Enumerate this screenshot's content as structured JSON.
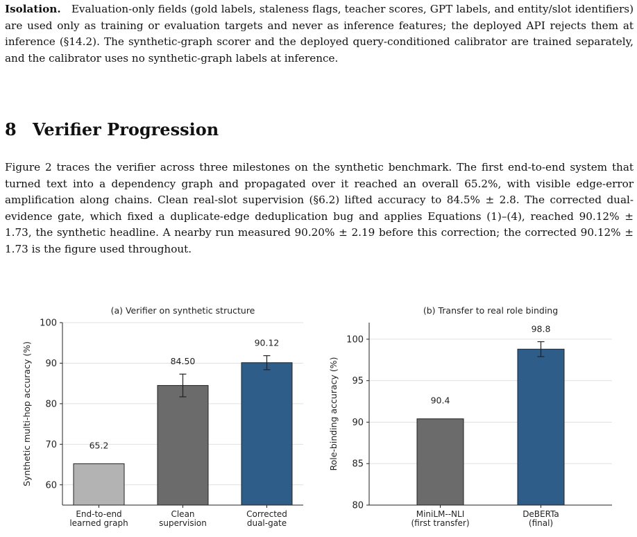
{
  "paragraph1": {
    "lead": "Isolation.",
    "text": "Evaluation-only fields (gold labels, staleness flags, teacher scores, GPT labels, and entity/slot identifiers) are used only as training or evaluation targets and never as inference features; the deployed API rejects them at inference (§14.2). The synthetic-graph scorer and the deployed query-conditioned calibrator are trained separately, and the calibrator uses no synthetic-graph labels at inference."
  },
  "section": {
    "number": "8",
    "title": "Verifier Progression"
  },
  "paragraph2": {
    "text": "Figure 2 traces the verifier across three milestones on the synthetic benchmark. The first end-to-end system that turned text into a dependency graph and propagated over it reached an overall 65.2%, with visible edge-error amplification along chains. Clean real-slot supervision (§6.2) lifted accuracy to 84.5% ± 2.8. The corrected dual-evidence gate, which fixed a duplicate-edge deduplication bug and applies Equations (1)–(4), reached 90.12% ± 1.73, the synthetic headline. A nearby run measured 90.20% ± 2.19 before this correction; the corrected 90.12% ± 1.73 is the figure used throughout."
  },
  "chart_data": [
    {
      "type": "bar",
      "title": "(a) Verifier on synthetic structure",
      "xlabel": "",
      "ylabel": "Synthetic multi-hop accuracy (%)",
      "categories": [
        [
          "End-to-end",
          "learned graph"
        ],
        [
          "Clean",
          "supervision"
        ],
        [
          "Corrected",
          "dual-gate"
        ]
      ],
      "values": [
        65.2,
        84.5,
        90.12
      ],
      "errors": [
        null,
        2.8,
        1.73
      ],
      "data_labels": [
        "65.2",
        "84.50",
        "90.12"
      ],
      "colors": [
        "#b3b3b3",
        "#6b6b6b",
        "#2e5d8a"
      ],
      "ylim": [
        55,
        100
      ],
      "yticks": [
        60,
        70,
        80,
        90,
        100
      ],
      "grid": true
    },
    {
      "type": "bar",
      "title": "(b) Transfer to real role binding",
      "xlabel": "",
      "ylabel": "Role-binding accuracy (%)",
      "categories": [
        [
          "MiniLM--NLI",
          "(first transfer)"
        ],
        [
          "DeBERTa",
          "(final)"
        ]
      ],
      "values": [
        90.4,
        98.8
      ],
      "errors": [
        null,
        0.9
      ],
      "data_labels": [
        "90.4",
        "98.8"
      ],
      "colors": [
        "#6b6b6b",
        "#2e5d8a"
      ],
      "ylim": [
        80,
        102
      ],
      "yticks": [
        80,
        85,
        90,
        95,
        100
      ],
      "grid": true
    }
  ]
}
